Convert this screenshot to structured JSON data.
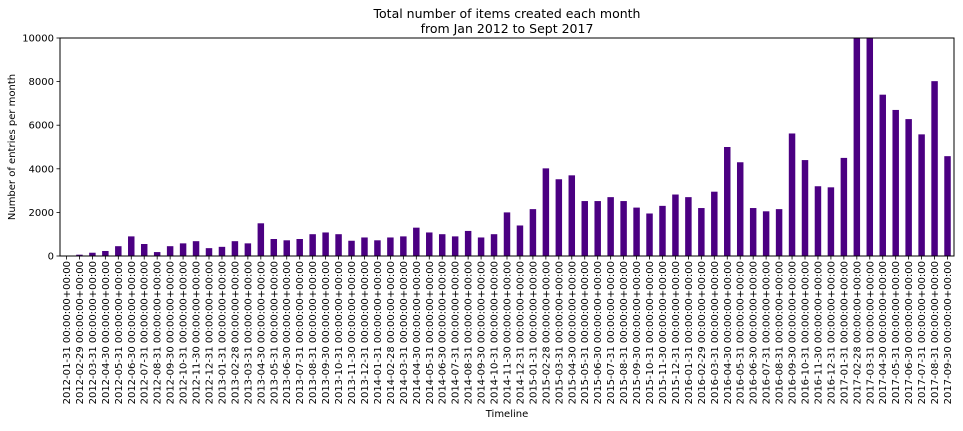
{
  "chart_data": {
    "type": "bar",
    "title": "Total number of items created each month",
    "subtitle": "from Jan 2012 to Sept 2017",
    "xlabel": "Timeline",
    "ylabel": "Number of entries per month",
    "ylim": [
      0,
      10000
    ],
    "yticks": [
      "0",
      "2000",
      "4000",
      "6000",
      "8000",
      "10000"
    ],
    "grid": false,
    "legend": "none",
    "bar_color": "#4b0082",
    "categories": [
      "2012-01-31 00:00:00+00:00",
      "2012-02-29 00:00:00+00:00",
      "2012-03-31 00:00:00+00:00",
      "2012-04-30 00:00:00+00:00",
      "2012-05-31 00:00:00+00:00",
      "2012-06-30 00:00:00+00:00",
      "2012-07-31 00:00:00+00:00",
      "2012-08-31 00:00:00+00:00",
      "2012-09-30 00:00:00+00:00",
      "2012-10-31 00:00:00+00:00",
      "2012-11-30 00:00:00+00:00",
      "2012-12-31 00:00:00+00:00",
      "2013-01-31 00:00:00+00:00",
      "2013-02-28 00:00:00+00:00",
      "2013-03-31 00:00:00+00:00",
      "2013-04-30 00:00:00+00:00",
      "2013-05-31 00:00:00+00:00",
      "2013-06-30 00:00:00+00:00",
      "2013-07-31 00:00:00+00:00",
      "2013-08-31 00:00:00+00:00",
      "2013-09-30 00:00:00+00:00",
      "2013-10-31 00:00:00+00:00",
      "2013-11-30 00:00:00+00:00",
      "2013-12-31 00:00:00+00:00",
      "2014-01-31 00:00:00+00:00",
      "2014-02-28 00:00:00+00:00",
      "2014-03-31 00:00:00+00:00",
      "2014-04-30 00:00:00+00:00",
      "2014-05-31 00:00:00+00:00",
      "2014-06-30 00:00:00+00:00",
      "2014-07-31 00:00:00+00:00",
      "2014-08-31 00:00:00+00:00",
      "2014-09-30 00:00:00+00:00",
      "2014-10-31 00:00:00+00:00",
      "2014-11-30 00:00:00+00:00",
      "2014-12-31 00:00:00+00:00",
      "2015-01-31 00:00:00+00:00",
      "2015-02-28 00:00:00+00:00",
      "2015-03-31 00:00:00+00:00",
      "2015-04-30 00:00:00+00:00",
      "2015-05-31 00:00:00+00:00",
      "2015-06-30 00:00:00+00:00",
      "2015-07-31 00:00:00+00:00",
      "2015-08-31 00:00:00+00:00",
      "2015-09-30 00:00:00+00:00",
      "2015-10-31 00:00:00+00:00",
      "2015-11-30 00:00:00+00:00",
      "2015-12-31 00:00:00+00:00",
      "2016-01-31 00:00:00+00:00",
      "2016-02-29 00:00:00+00:00",
      "2016-03-31 00:00:00+00:00",
      "2016-04-30 00:00:00+00:00",
      "2016-05-31 00:00:00+00:00",
      "2016-06-30 00:00:00+00:00",
      "2016-07-31 00:00:00+00:00",
      "2016-08-31 00:00:00+00:00",
      "2016-09-30 00:00:00+00:00",
      "2016-10-31 00:00:00+00:00",
      "2016-11-30 00:00:00+00:00",
      "2016-12-31 00:00:00+00:00",
      "2017-01-31 00:00:00+00:00",
      "2017-02-28 00:00:00+00:00",
      "2017-03-31 00:00:00+00:00",
      "2017-04-30 00:00:00+00:00",
      "2017-05-31 00:00:00+00:00",
      "2017-06-30 00:00:00+00:00",
      "2017-07-31 00:00:00+00:00",
      "2017-08-31 00:00:00+00:00",
      "2017-09-30 00:00:00+00:00"
    ],
    "values": [
      20,
      60,
      150,
      230,
      450,
      900,
      550,
      180,
      450,
      580,
      680,
      360,
      420,
      680,
      580,
      1500,
      780,
      720,
      780,
      1000,
      1080,
      1000,
      700,
      850,
      720,
      850,
      900,
      1300,
      1080,
      1000,
      900,
      1150,
      850,
      1000,
      2000,
      1400,
      2150,
      4020,
      3520,
      3700,
      2520,
      2520,
      2700,
      2520,
      2220,
      1950,
      2300,
      2820,
      2700,
      2200,
      2950,
      5000,
      4300,
      2200,
      2050,
      2150,
      5620,
      4400,
      3200,
      3150,
      4500,
      10500,
      10300,
      7400,
      6700,
      6280,
      5580,
      8020,
      4580
    ]
  }
}
